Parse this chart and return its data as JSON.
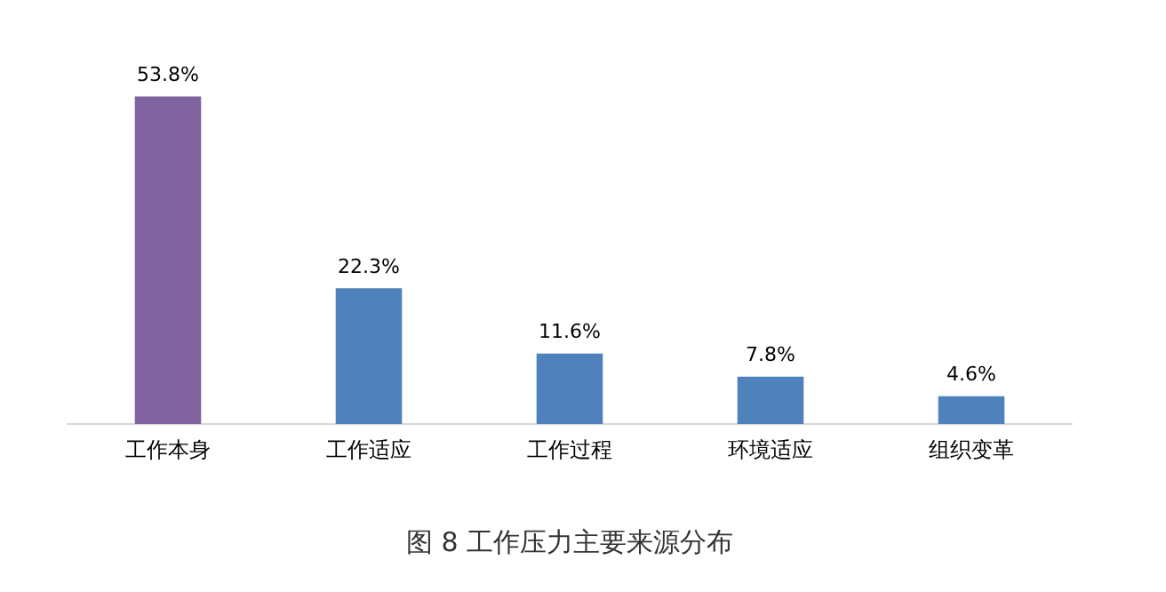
{
  "chart_data": {
    "type": "bar",
    "title": "图 8 工作压力主要来源分布",
    "categories": [
      "工作本身",
      "工作适应",
      "工作过程",
      "环境适应",
      "组织变革"
    ],
    "values": [
      53.8,
      22.3,
      11.6,
      7.8,
      4.6
    ],
    "colors": [
      "#8064a2",
      "#4f81bd",
      "#4f81bd",
      "#4f81bd",
      "#4f81bd"
    ],
    "value_labels": [
      "53.8%",
      "22.3%",
      "11.6%",
      "7.8%",
      "4.6%"
    ],
    "tick_labels": "x",
    "grid": false,
    "legend": false
  }
}
